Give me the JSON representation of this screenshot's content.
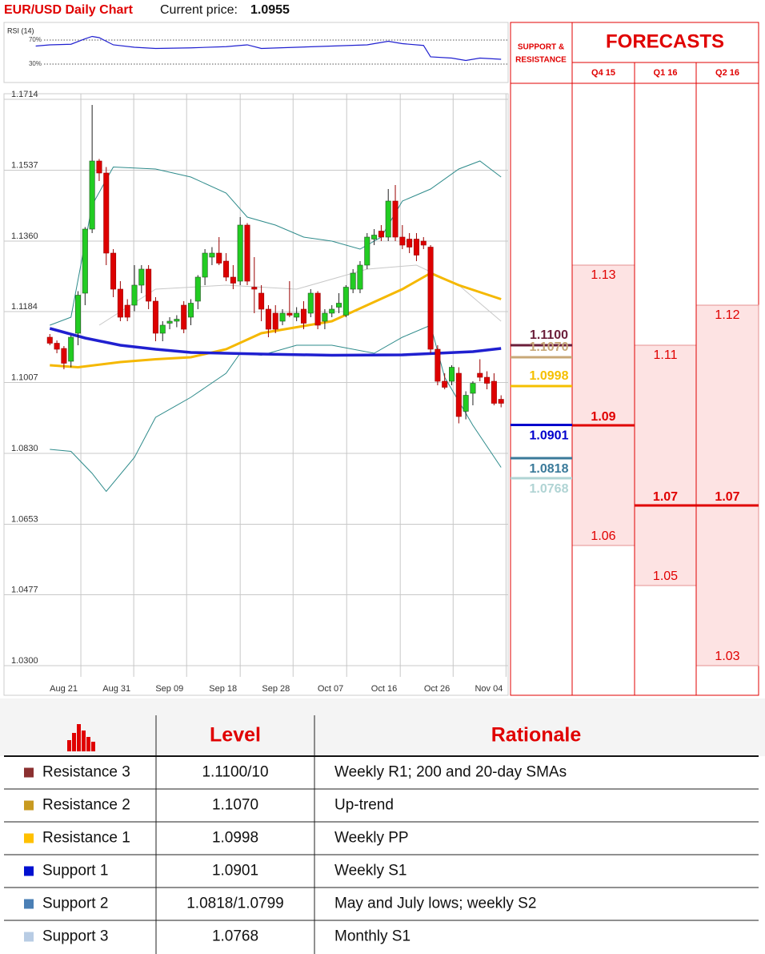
{
  "chart_data": [
    {
      "type": "candlestick",
      "title": "EUR/USD Daily Chart",
      "price_label": "Current price:",
      "price": 1.0955,
      "xlim": [
        -6.5,
        65
      ],
      "ylim": [
        1.0272,
        1.1728
      ],
      "yticks": [
        1.1714,
        1.1537,
        {
          "value": 1.136,
          "label": "1.1360"
        },
        1.1184,
        1.1007,
        {
          "value": 1.083,
          "label": "1.0830"
        },
        1.0653,
        1.0477,
        {
          "value": 1.03,
          "label": "1.0300"
        }
      ],
      "xticks": [
        {
          "value": 4.4,
          "label": "Aug 21"
        },
        {
          "value": 11.9,
          "label": "Aug 31"
        },
        {
          "value": 19.4,
          "label": "Sep 09"
        },
        {
          "value": 27,
          "label": "Sep 18"
        },
        {
          "value": 34.5,
          "label": "Sep 28"
        },
        {
          "value": 42.1,
          "label": "Oct 07"
        },
        {
          "value": 49.7,
          "label": "Oct 16"
        },
        {
          "value": 57.2,
          "label": "Oct 26"
        },
        {
          "value": 64.7,
          "label": "Nov 04"
        }
      ],
      "grid": true,
      "up_color": "#22cc22",
      "down_color": "#dd0000",
      "candles": [
        [
          1.112,
          1.1128,
          1.11,
          1.1105
        ],
        [
          1.1105,
          1.1112,
          1.108,
          1.109
        ],
        [
          1.1092,
          1.1098,
          1.104,
          1.1055
        ],
        [
          1.106,
          1.1125,
          1.1045,
          1.112
        ],
        [
          1.113,
          1.1235,
          1.11,
          1.1225
        ],
        [
          1.123,
          1.1395,
          1.12,
          1.139
        ],
        [
          1.139,
          1.17,
          1.138,
          1.156
        ],
        [
          1.156,
          1.1565,
          1.151,
          1.153
        ],
        [
          1.153,
          1.1545,
          1.13,
          1.133
        ],
        [
          1.133,
          1.134,
          1.122,
          1.124
        ],
        [
          1.124,
          1.126,
          1.116,
          1.117
        ],
        [
          1.12,
          1.1215,
          1.116,
          1.117
        ],
        [
          1.12,
          1.13,
          1.1185,
          1.125
        ],
        [
          1.125,
          1.13,
          1.123,
          1.129
        ],
        [
          1.129,
          1.13,
          1.119,
          1.121
        ],
        [
          1.121,
          1.122,
          1.111,
          1.113
        ],
        [
          1.113,
          1.116,
          1.111,
          1.115
        ],
        [
          1.1155,
          1.117,
          1.114,
          1.116
        ],
        [
          1.116,
          1.1175,
          1.1145,
          1.1165
        ],
        [
          1.12,
          1.121,
          1.113,
          1.114
        ],
        [
          1.117,
          1.1215,
          1.115,
          1.1205
        ],
        [
          1.121,
          1.1275,
          1.119,
          1.127
        ],
        [
          1.127,
          1.134,
          1.125,
          1.133
        ],
        [
          1.132,
          1.1345,
          1.13,
          1.133
        ],
        [
          1.133,
          1.137,
          1.13,
          1.1305
        ],
        [
          1.131,
          1.133,
          1.126,
          1.127
        ],
        [
          1.127,
          1.13,
          1.124,
          1.1255
        ],
        [
          1.126,
          1.142,
          1.125,
          1.14
        ],
        [
          1.14,
          1.1405,
          1.125,
          1.126
        ],
        [
          1.1245,
          1.132,
          1.118,
          1.124
        ],
        [
          1.123,
          1.125,
          1.116,
          1.119
        ],
        [
          1.119,
          1.12,
          1.112,
          1.114
        ],
        [
          1.118,
          1.12,
          1.113,
          1.114
        ],
        [
          1.116,
          1.119,
          1.115,
          1.118
        ],
        [
          1.118,
          1.126,
          1.117,
          1.1175
        ],
        [
          1.117,
          1.1195,
          1.116,
          1.118
        ],
        [
          1.119,
          1.121,
          1.114,
          1.1155
        ],
        [
          1.118,
          1.124,
          1.117,
          1.123
        ],
        [
          1.123,
          1.1235,
          1.114,
          1.115
        ],
        [
          1.116,
          1.119,
          1.114,
          1.118
        ],
        [
          1.118,
          1.12,
          1.117,
          1.119
        ],
        [
          1.1195,
          1.123,
          1.118,
          1.1205
        ],
        [
          1.1175,
          1.125,
          1.117,
          1.1245
        ],
        [
          1.124,
          1.129,
          1.123,
          1.128
        ],
        [
          1.124,
          1.131,
          1.123,
          1.13
        ],
        [
          1.13,
          1.138,
          1.129,
          1.137
        ],
        [
          1.1365,
          1.139,
          1.135,
          1.1375
        ],
        [
          1.1385,
          1.14,
          1.136,
          1.137
        ],
        [
          1.137,
          1.149,
          1.136,
          1.146
        ],
        [
          1.146,
          1.15,
          1.136,
          1.137
        ],
        [
          1.137,
          1.14,
          1.134,
          1.135
        ],
        [
          1.1365,
          1.138,
          1.133,
          1.1345
        ],
        [
          1.1365,
          1.138,
          1.131,
          1.1325
        ],
        [
          1.136,
          1.137,
          1.134,
          1.135
        ],
        [
          1.1345,
          1.135,
          1.108,
          1.109
        ],
        [
          1.109,
          1.11,
          1.1,
          1.101
        ],
        [
          1.101,
          1.103,
          1.099,
          1.0995
        ],
        [
          1.101,
          1.105,
          1.1,
          1.1045
        ],
        [
          1.103,
          1.1045,
          1.0905,
          1.0922
        ],
        [
          1.0935,
          1.0985,
          1.0915,
          1.0975
        ],
        [
          1.098,
          1.101,
          1.095,
          1.1005
        ],
        [
          1.103,
          1.1065,
          1.101,
          1.102
        ],
        [
          1.102,
          1.1035,
          1.099,
          1.1005
        ],
        [
          1.101,
          1.103,
          1.095,
          1.0955
        ],
        [
          1.0965,
          1.0975,
          1.0945,
          1.0955
        ]
      ],
      "overlays": [
        {
          "color": "#c8c8c8",
          "width": 1,
          "x": [
            7,
            15,
            25,
            35,
            45,
            52,
            58,
            64
          ],
          "values": [
            1.115,
            1.124,
            1.125,
            1.124,
            1.129,
            1.13,
            1.125,
            1.116
          ]
        },
        {
          "color": "#2e8b8b",
          "width": 1,
          "x": [
            0,
            3,
            6,
            9,
            15,
            20,
            25,
            28,
            32,
            36,
            40,
            44,
            47,
            50,
            54,
            58,
            61,
            64
          ],
          "values": [
            1.115,
            1.117,
            1.145,
            1.1545,
            1.154,
            1.152,
            1.148,
            1.142,
            1.14,
            1.137,
            1.136,
            1.134,
            1.137,
            1.146,
            1.149,
            1.154,
            1.156,
            1.152
          ]
        },
        {
          "color": "#2e8b8b",
          "width": 1,
          "x": [
            0,
            3,
            6,
            8,
            12,
            15,
            20,
            25,
            27,
            30,
            35,
            40,
            46,
            50,
            54,
            56,
            60,
            64
          ],
          "values": [
            1.084,
            1.0835,
            1.078,
            1.0735,
            1.082,
            1.092,
            1.097,
            1.103,
            1.108,
            1.1075,
            1.11,
            1.11,
            1.108,
            1.112,
            1.115,
            1.102,
            1.09,
            1.0795
          ]
        },
        {
          "color": "#f5b800",
          "width": 3,
          "x": [
            0,
            4,
            10,
            15,
            20,
            25,
            30,
            35,
            40,
            45,
            50,
            54,
            58,
            64
          ],
          "values": [
            1.105,
            1.1045,
            1.1058,
            1.1065,
            1.107,
            1.109,
            1.113,
            1.1145,
            1.116,
            1.12,
            1.124,
            1.128,
            1.125,
            1.1215
          ]
        },
        {
          "color": "#2020d0",
          "width": 3.5,
          "x": [
            0,
            5,
            10,
            15,
            20,
            30,
            40,
            50,
            55,
            60,
            64
          ],
          "values": [
            1.1142,
            1.1118,
            1.11,
            1.109,
            1.1082,
            1.1078,
            1.1075,
            1.1076,
            1.108,
            1.1084,
            1.1092
          ]
        }
      ]
    },
    {
      "type": "line",
      "title": "RSI (14)",
      "color": "#2020d0",
      "xlim": [
        -6.5,
        65
      ],
      "ylim": [
        -0.7,
        99.3
      ],
      "yticks": [
        {
          "value": 70,
          "label": "70%"
        },
        {
          "value": 30,
          "label": "30%"
        }
      ],
      "x": [
        -2,
        0,
        3,
        5,
        6,
        7,
        9,
        12,
        15,
        20,
        25,
        28,
        30,
        35,
        40,
        45,
        48,
        50,
        53,
        54,
        57,
        59,
        61,
        64
      ],
      "values": [
        60,
        62,
        63,
        72,
        76,
        74,
        62,
        58,
        56,
        57,
        59,
        62,
        56,
        58,
        60,
        62,
        68,
        64,
        61,
        42,
        40,
        36,
        40,
        38
      ]
    },
    {
      "type": "forecast",
      "title": "FORECASTS",
      "levels_title": [
        "SUPPORT &",
        "RESISTANCE"
      ],
      "categories": [
        "Q4 15",
        "Q1 16",
        "Q2 16"
      ],
      "high": [
        1.13,
        1.11,
        1.12
      ],
      "mid": [
        1.09,
        1.07,
        1.07
      ],
      "low": [
        1.06,
        1.05,
        1.03
      ],
      "color": "#e00000",
      "band_color": "#fde3e3",
      "levels": {
        "values": [
          1.11,
          1.107,
          1.0998,
          1.0901,
          1.0818,
          1.0768
        ],
        "value_labels": [
          "1.1100",
          "1.1070",
          "1.0998",
          "1.0901",
          "1.0818",
          "1.0768"
        ],
        "colors": [
          "#6b1e3a",
          "#c8a878",
          "#f5c000",
          "#0000cc",
          "#3a7a9a",
          "#b0d4d4"
        ]
      }
    }
  ],
  "table": {
    "header": [
      "Level",
      "Rationale"
    ],
    "rows": [
      [
        "Resistance 3",
        "1.1100/10",
        "Weekly R1; 200 and 20-day SMAs"
      ],
      [
        "Resistance 2",
        "1.1070",
        "Up-trend"
      ],
      [
        "Resistance 1",
        "1.0998",
        "Weekly PP"
      ],
      [
        "Support 1",
        "1.0901",
        "Weekly S1"
      ],
      [
        "Support 2",
        "1.0818/1.0799",
        "May and July lows; weekly S2"
      ],
      [
        "Support 3",
        "1.0768",
        "Monthly S1"
      ]
    ],
    "colors": [
      "#8b3030",
      "#c89a20",
      "#ffc000",
      "#0010d0",
      "#4a7fb5",
      "#b8cce4"
    ]
  }
}
